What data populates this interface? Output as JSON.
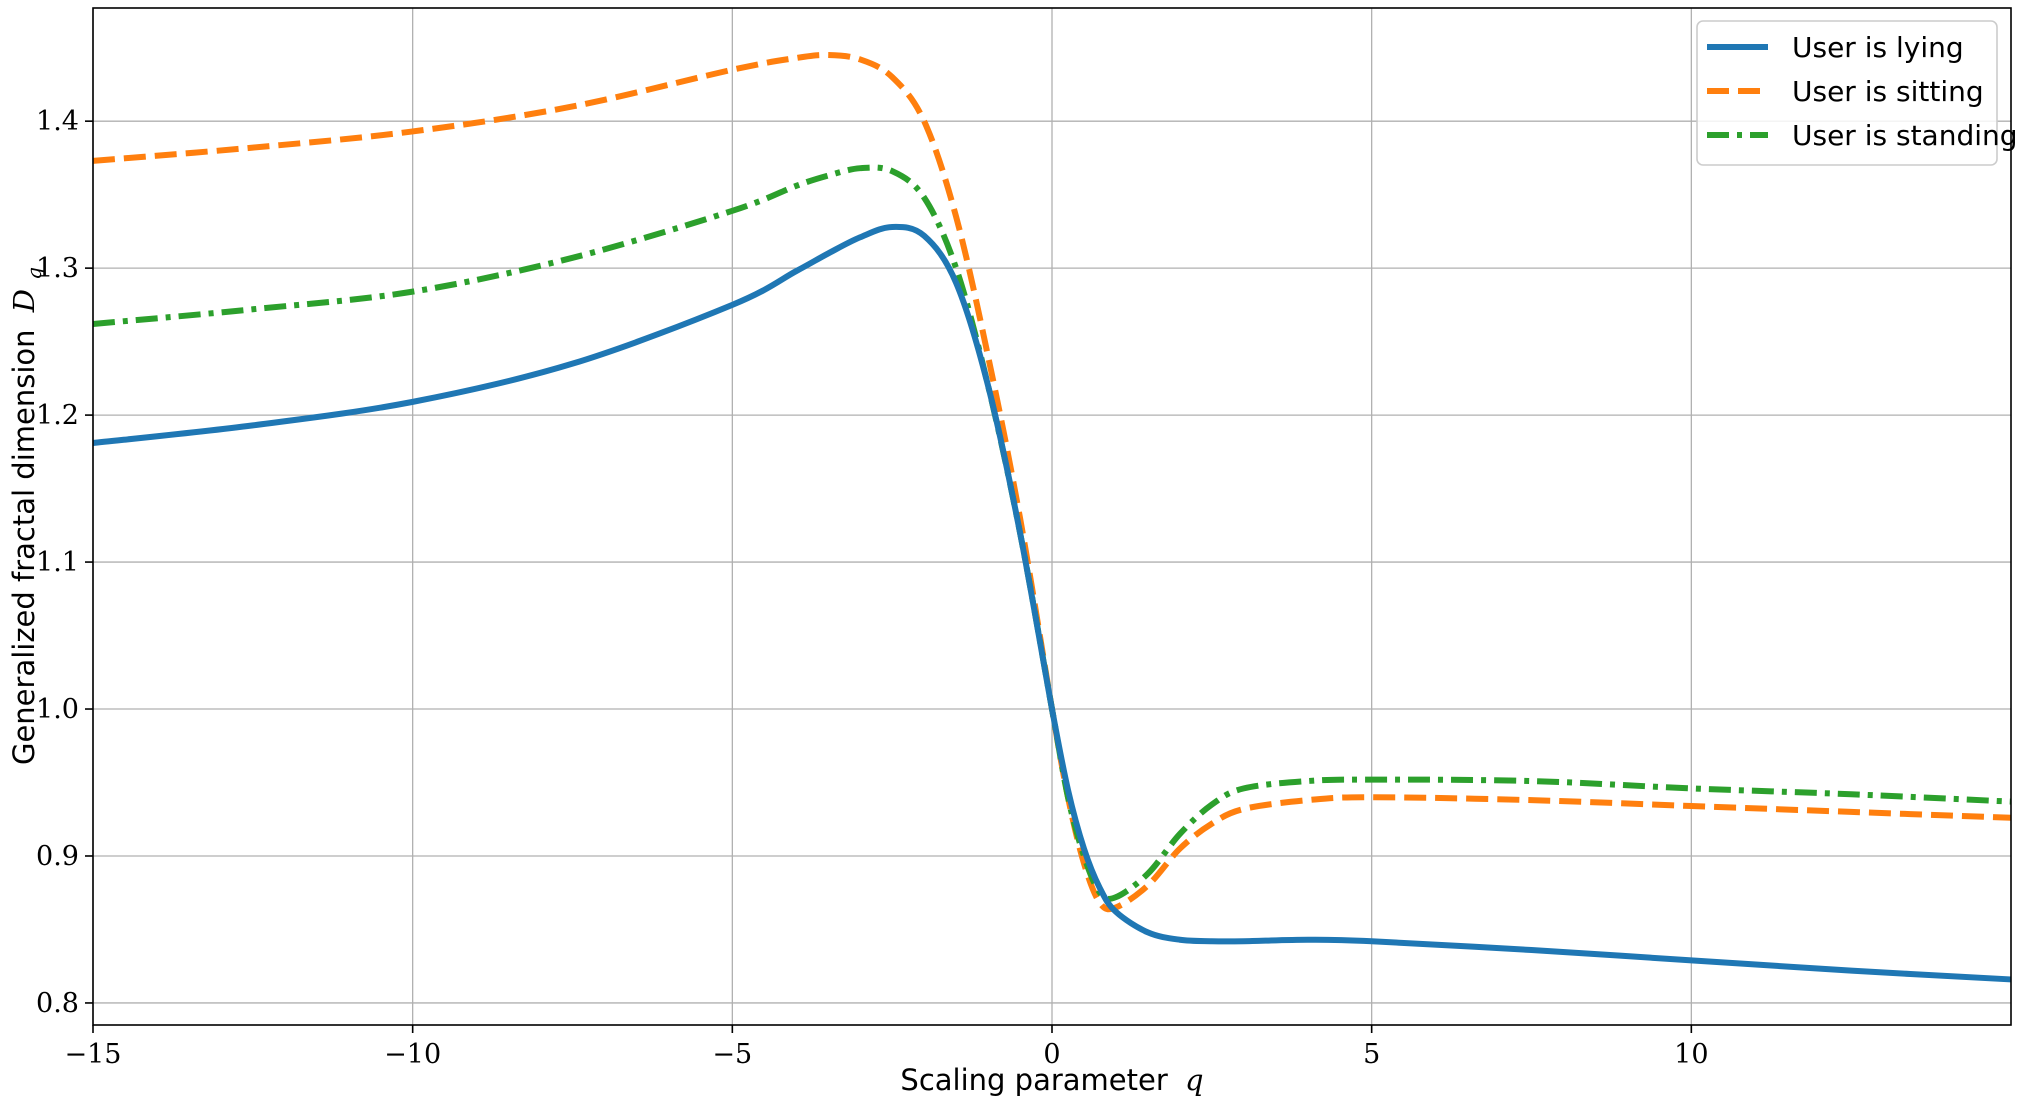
{
  "chart_data": {
    "type": "line",
    "xlabel": "Scaling parameter",
    "xlabel_symbol": "q",
    "ylabel": "Generalized fractal dimension",
    "ylabel_symbol": "D",
    "ylabel_subscript": "q",
    "xlim": [
      -15,
      15
    ],
    "ylim": [
      0.785,
      1.477
    ],
    "x_ticks": [
      -15,
      -10,
      -5,
      0,
      5,
      10
    ],
    "x_tick_labels": [
      "−15",
      "−10",
      "−5",
      "0",
      "5",
      "10"
    ],
    "y_ticks": [
      0.8,
      0.9,
      1.0,
      1.1,
      1.2,
      1.3,
      1.4
    ],
    "y_tick_labels": [
      "0.8",
      "0.9",
      "1.0",
      "1.1",
      "1.2",
      "1.3",
      "1.4"
    ],
    "grid": true,
    "legend_position": "top-right",
    "x": [
      -15,
      -12.5,
      -10,
      -7.5,
      -5,
      -4,
      -3.5,
      -3,
      -2.5,
      -2,
      -1.5,
      -1,
      -0.5,
      0,
      0.25,
      0.5,
      0.75,
      1,
      1.5,
      2,
      2.5,
      3,
      4,
      5,
      7.5,
      10,
      12.5,
      15
    ],
    "series": [
      {
        "name": "User is lying",
        "color": "#1f77b4",
        "dash": "solid",
        "values": [
          1.181,
          1.193,
          1.209,
          1.235,
          1.275,
          1.298,
          1.31,
          1.321,
          1.328,
          1.322,
          1.29,
          1.22,
          1.12,
          1.0,
          0.945,
          0.905,
          0.878,
          0.862,
          0.848,
          0.843,
          0.842,
          0.842,
          0.843,
          0.842,
          0.836,
          0.829,
          0.822,
          0.816
        ]
      },
      {
        "name": "User is sitting",
        "color": "#ff7f0e",
        "dash": "dashed",
        "values": [
          1.373,
          1.382,
          1.393,
          1.41,
          1.435,
          1.443,
          1.445,
          1.442,
          1.43,
          1.4,
          1.335,
          1.24,
          1.13,
          1.0,
          0.94,
          0.895,
          0.868,
          0.865,
          0.88,
          0.905,
          0.922,
          0.932,
          0.938,
          0.94,
          0.938,
          0.934,
          0.93,
          0.926
        ]
      },
      {
        "name": "User is standing",
        "color": "#2ca02c",
        "dash": "dashdot",
        "values": [
          1.262,
          1.272,
          1.284,
          1.307,
          1.339,
          1.356,
          1.363,
          1.368,
          1.366,
          1.348,
          1.3,
          1.22,
          1.12,
          1.0,
          0.94,
          0.9,
          0.875,
          0.872,
          0.888,
          0.915,
          0.935,
          0.946,
          0.951,
          0.952,
          0.951,
          0.946,
          0.942,
          0.937
        ]
      }
    ]
  }
}
